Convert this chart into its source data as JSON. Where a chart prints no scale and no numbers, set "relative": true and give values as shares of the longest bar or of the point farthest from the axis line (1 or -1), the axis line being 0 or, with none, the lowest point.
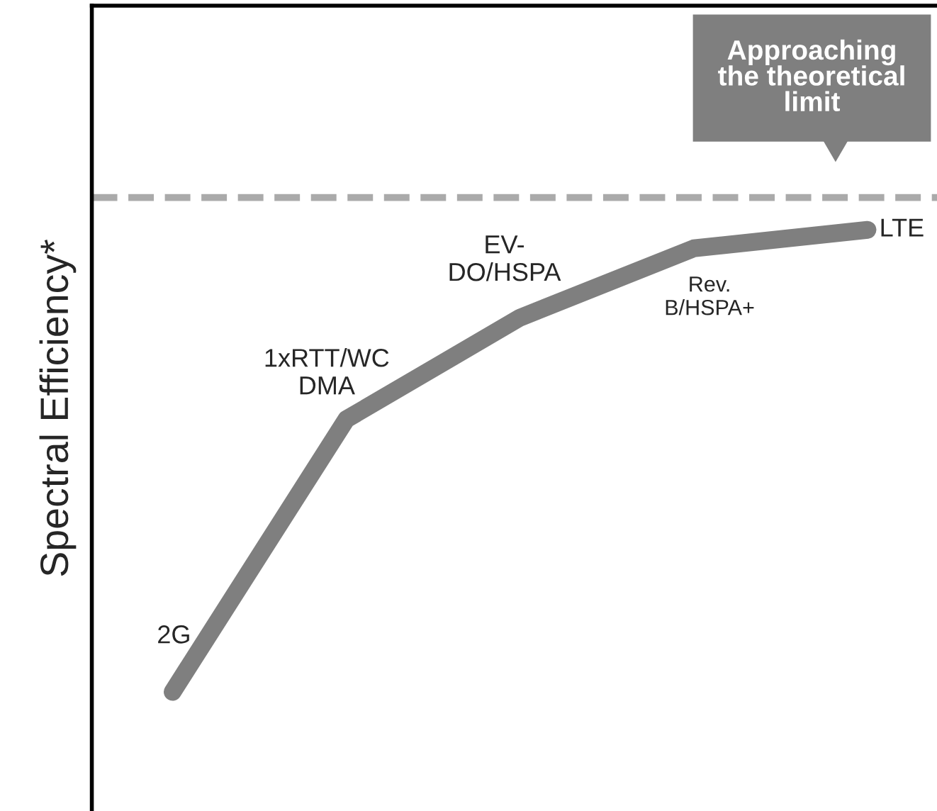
{
  "chart_data": {
    "type": "line",
    "relative": true,
    "ylabel": "Spectral Efficiency*",
    "categories": [
      null,
      null,
      null,
      null,
      null
    ],
    "series": [
      {
        "color": "#7f7f7f",
        "values": [
          0,
          0.59,
          0.81,
          0.96,
          1.0
        ]
      }
    ],
    "ref_lines": [
      {
        "axis": "y",
        "value": 1.07,
        "color": "#aaaaaa",
        "line_style": "dashed"
      }
    ],
    "annotations": [
      "Approaching\nthe theoretical\nlimit",
      "2G",
      "1xRTT/WC\nDMA",
      "EV-\nDO/HSPA",
      "Rev.\nB/HSPA+",
      "LTE"
    ],
    "marker": "none",
    "line_style": "solid",
    "legend": false
  }
}
